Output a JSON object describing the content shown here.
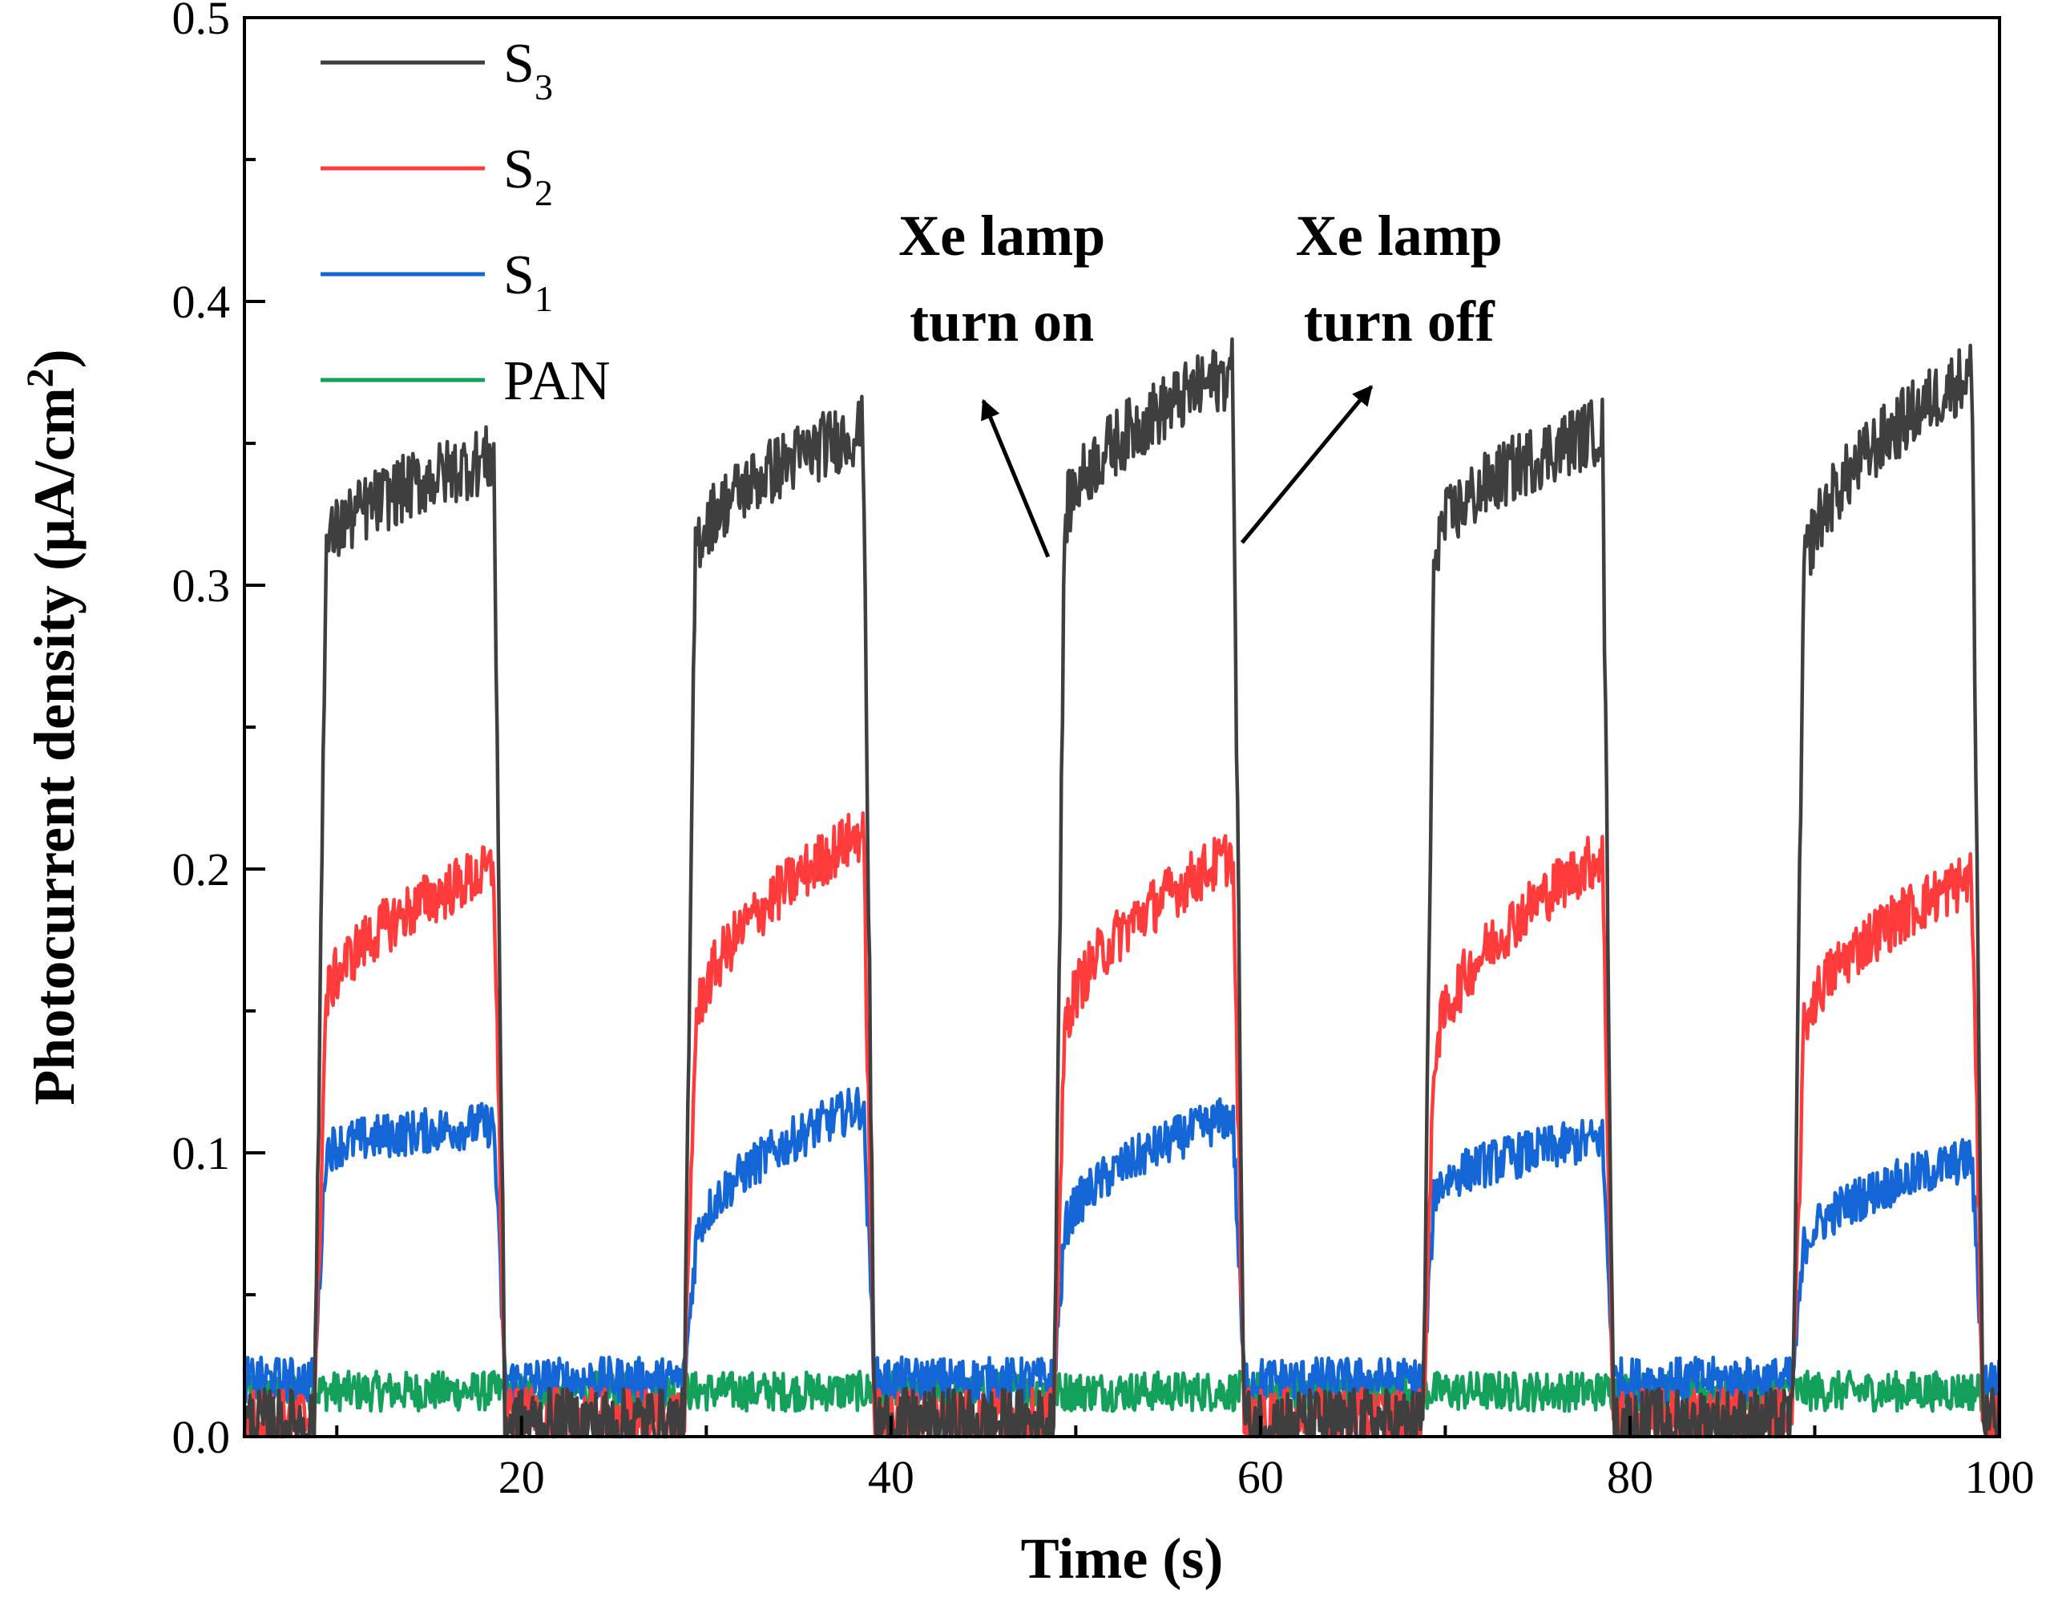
{
  "chart_data": {
    "type": "line",
    "title": "",
    "xlabel": "Time (s)",
    "ylabel": "Photocurrent density (μA/cm2)",
    "ylabel_parts": {
      "main": "Photocurrent density (μA/cm",
      "sup": "2",
      "end": ")"
    },
    "xlim": [
      5,
      100
    ],
    "ylim": [
      0.0,
      0.5
    ],
    "xticks": [
      20,
      40,
      60,
      80,
      100
    ],
    "xtick_labels": [
      "20",
      "40",
      "60",
      "80",
      "100"
    ],
    "yticks": [
      0.0,
      0.1,
      0.2,
      0.3,
      0.4,
      0.5
    ],
    "ytick_labels": [
      "0.0",
      "0.1",
      "0.2",
      "0.3",
      "0.4",
      "0.5"
    ],
    "grid": false,
    "legend_position": "top-left",
    "on_times": [
      8.8,
      28.8,
      48.8,
      68.8,
      88.8
    ],
    "off_times": [
      18.5,
      38.5,
      58.5,
      78.5,
      98.5
    ],
    "series": [
      {
        "name": "S3",
        "label_main": "S",
        "label_sub": "3",
        "color": "#3f3f3f",
        "baseline": 0.005,
        "plateau_start": [
          0.31,
          0.31,
          0.32,
          0.31,
          0.3
        ],
        "plateau_end": [
          0.345,
          0.355,
          0.375,
          0.355,
          0.375
        ],
        "noise": 0.012
      },
      {
        "name": "S2",
        "label_main": "S",
        "label_sub": "2",
        "color": "#ff3b3b",
        "baseline": 0.007,
        "plateau_start": [
          0.15,
          0.14,
          0.14,
          0.13,
          0.14
        ],
        "plateau_end": [
          0.2,
          0.213,
          0.205,
          0.205,
          0.197
        ],
        "noise": 0.01
      },
      {
        "name": "S1",
        "label_main": "S",
        "label_sub": "1",
        "color": "#1466d6",
        "baseline": 0.02,
        "plateau_start": [
          0.1,
          0.065,
          0.07,
          0.085,
          0.065
        ],
        "plateau_end": [
          0.11,
          0.117,
          0.113,
          0.105,
          0.098
        ],
        "noise": 0.008
      },
      {
        "name": "PAN",
        "label_main": "PAN",
        "label_sub": "",
        "color": "#12a05a",
        "baseline": 0.016,
        "plateau_start": [
          0.016,
          0.016,
          0.016,
          0.016,
          0.016
        ],
        "plateau_end": [
          0.016,
          0.016,
          0.016,
          0.016,
          0.016
        ],
        "noise": 0.007
      }
    ],
    "annotations": [
      {
        "line1": "Xe lamp",
        "line2": "turn on",
        "at_x": 48.5,
        "at_y": 0.31,
        "tip_x": 45.0,
        "tip_y": 0.365
      },
      {
        "line1": "Xe lamp",
        "line2": "turn off",
        "at_x": 59.0,
        "at_y": 0.315,
        "tip_x": 66.0,
        "tip_y": 0.37
      }
    ]
  }
}
